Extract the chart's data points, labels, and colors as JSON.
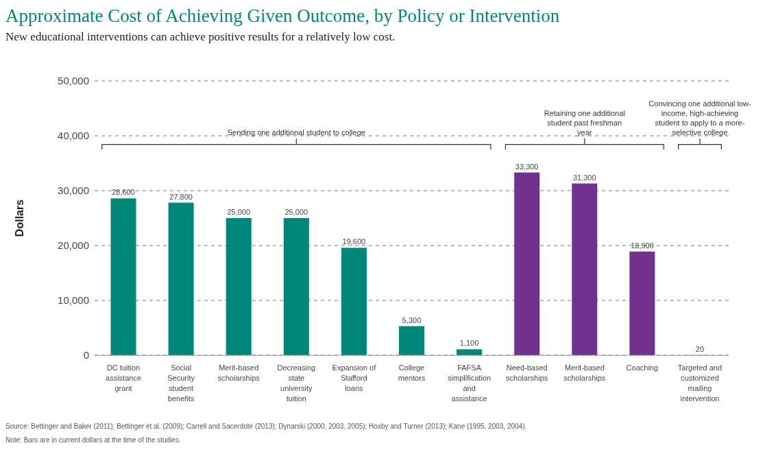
{
  "chart_data": {
    "type": "bar",
    "title": "Approximate Cost of Achieving Given Outcome, by Policy or Intervention",
    "subtitle": "New educational interventions can achieve positive results for a relatively low cost.",
    "ylabel": "Dollars",
    "categories": [
      "DC tuition assistance grant",
      "Social Security student benefits",
      "Merit-based scholarships",
      "Decreasing state university tuition",
      "Expansion of Stafford loans",
      "College mentors",
      "FAFSA simplification and assistance",
      "Need-based scholarships",
      "Merit-based scholarships",
      "Coaching",
      "Targeted and customized mailing intervention"
    ],
    "values": [
      28600,
      27800,
      25000,
      25000,
      19600,
      5300,
      1100,
      33300,
      31300,
      18900,
      20
    ],
    "value_labels": [
      "28,600",
      "27,800",
      "25,000",
      "25,000",
      "19,600",
      "5,300",
      "1,100",
      "33,300",
      "31,300",
      "18,900",
      "20"
    ],
    "colors": [
      "#00877a",
      "#00877a",
      "#00877a",
      "#00877a",
      "#00877a",
      "#00877a",
      "#00877a",
      "#70318f",
      "#70318f",
      "#70318f",
      "#8cb84a"
    ],
    "ylim": [
      0,
      50000
    ],
    "yticks": [
      {
        "value": 0,
        "label": "0"
      },
      {
        "value": 10000,
        "label": "10,000"
      },
      {
        "value": 20000,
        "label": "20,000"
      },
      {
        "value": 30000,
        "label": "30,000"
      },
      {
        "value": 40000,
        "label": "40,000"
      },
      {
        "value": 50000,
        "label": "50,000"
      }
    ],
    "grid": "y",
    "annotations": [
      "Sending one additional student to college",
      "Retaining one additional student past freshman year",
      "Convincing one additional low-income, high-achieving student to apply to a more-selective college",
      "Source: Bettinger and Baker (2011); Bettinger et al. (2009); Carrell and Sacerdote (2013); Dynarski (2000, 2003, 2005); Hoxby and Turner (2013); Kane (1995, 2003, 2004).",
      "Note: Bars are in current dollars at the time of the studies."
    ]
  }
}
